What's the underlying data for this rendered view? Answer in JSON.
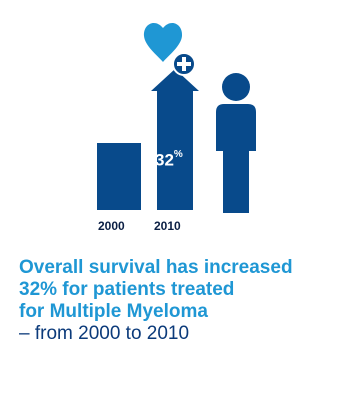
{
  "colors": {
    "navy": "#084a8b",
    "heart_blue": "#1f97d4",
    "headline_blue": "#1f97d4",
    "subline_navy": "#0b3a7a",
    "year_text": "#0b1f44"
  },
  "icons": [
    "heart-icon",
    "plus-icon",
    "up-arrow-icon",
    "person-icon"
  ],
  "bars": [
    {
      "year": "2000"
    },
    {
      "year": "2010"
    }
  ],
  "increase": {
    "value": "32",
    "unit": "%"
  },
  "caption": {
    "headline_lines": [
      "Overall survival has increased",
      "32% for patients treated",
      "for Multiple Myeloma"
    ],
    "subline": "– from 2000 to 2010"
  }
}
